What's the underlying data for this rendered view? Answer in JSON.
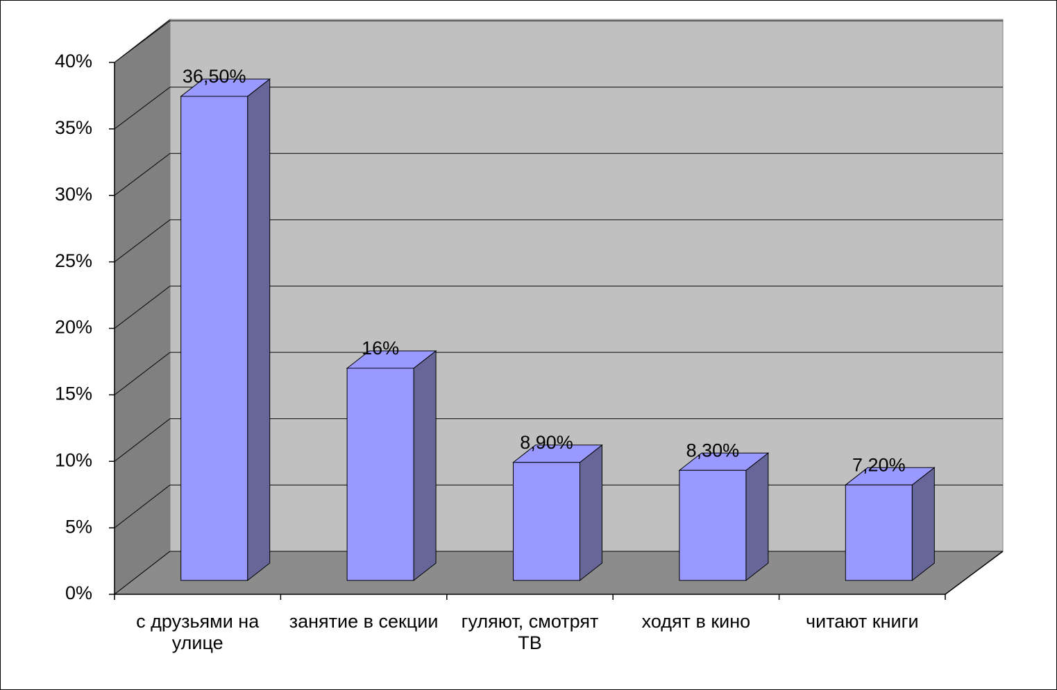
{
  "chart_data": {
    "type": "bar3d",
    "categories": [
      "с друзьями на улице",
      "занятие в секции",
      "гуляют, смотрят ТВ",
      "ходят в кино",
      "читают книги"
    ],
    "values": [
      36.5,
      16,
      8.9,
      8.3,
      7.2
    ],
    "value_labels": [
      "36,50%",
      "16%",
      "8,90%",
      "8,30%",
      "7,20%"
    ],
    "color": "#9999ff",
    "ylim": [
      0,
      40
    ],
    "yticks": [
      {
        "value": 0,
        "label": "0%"
      },
      {
        "value": 5,
        "label": "5%"
      },
      {
        "value": 10,
        "label": "10%"
      },
      {
        "value": 15,
        "label": "15%"
      },
      {
        "value": 20,
        "label": "20%"
      },
      {
        "value": 25,
        "label": "25%"
      },
      {
        "value": 30,
        "label": "30%"
      },
      {
        "value": 35,
        "label": "35%"
      },
      {
        "value": 40,
        "label": "40%"
      }
    ],
    "grid": true
  }
}
